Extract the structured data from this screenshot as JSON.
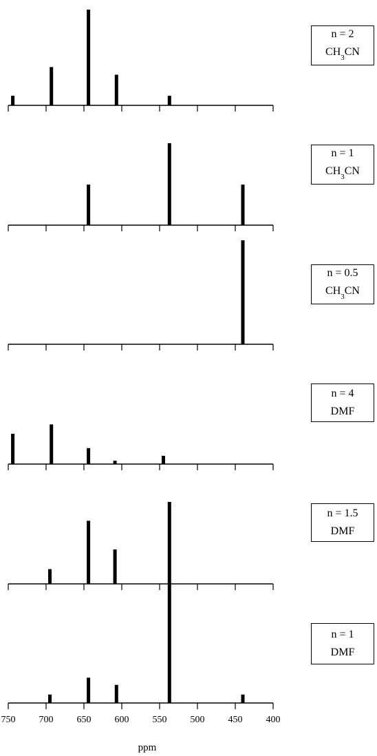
{
  "chart_data": {
    "type": "bar",
    "description": "Stacked spectra panels with shared ppm axis",
    "xlabel": "ppm",
    "xlim": [
      750,
      400
    ],
    "x_reversed": true,
    "xticks": [
      750,
      700,
      650,
      600,
      550,
      500,
      450,
      400
    ],
    "tick_labels": [
      "750",
      "700",
      "650",
      "600",
      "550",
      "500",
      "450",
      "400"
    ],
    "panels": [
      {
        "label_line1": "n = 2",
        "label_line2_main": "CH",
        "label_line2_sub": "3",
        "label_line2_end": "CN",
        "peaks": [
          {
            "ppm": 744,
            "height": 0.1
          },
          {
            "ppm": 693,
            "height": 0.4
          },
          {
            "ppm": 644,
            "height": 1.0
          },
          {
            "ppm": 607,
            "height": 0.32
          },
          {
            "ppm": 537,
            "height": 0.1
          }
        ]
      },
      {
        "label_line1": "n = 1",
        "label_line2_main": "CH",
        "label_line2_sub": "3",
        "label_line2_end": "CN",
        "peaks": [
          {
            "ppm": 644,
            "height": 0.46
          },
          {
            "ppm": 537,
            "height": 0.93
          },
          {
            "ppm": 440,
            "height": 0.46
          }
        ]
      },
      {
        "label_line1": "n = 0.5",
        "label_line2_main": "CH",
        "label_line2_sub": "3",
        "label_line2_end": "CN",
        "peaks": [
          {
            "ppm": 440,
            "height": 1.0
          }
        ]
      },
      {
        "label_line1": "n = 4",
        "label_line2_main": "DMF",
        "label_line2_sub": "",
        "label_line2_end": "",
        "peaks": [
          {
            "ppm": 744,
            "height": 0.55
          },
          {
            "ppm": 693,
            "height": 0.72
          },
          {
            "ppm": 644,
            "height": 0.29
          },
          {
            "ppm": 609,
            "height": 0.06
          },
          {
            "ppm": 545,
            "height": 0.15
          }
        ]
      },
      {
        "label_line1": "n = 1.5",
        "label_line2_main": "DMF",
        "label_line2_sub": "",
        "label_line2_end": "",
        "peaks": [
          {
            "ppm": 695,
            "height": 0.18
          },
          {
            "ppm": 644,
            "height": 0.77
          },
          {
            "ppm": 609,
            "height": 0.42
          },
          {
            "ppm": 537,
            "height": 1.0
          }
        ]
      },
      {
        "label_line1": "n = 1",
        "label_line2_main": "DMF",
        "label_line2_sub": "",
        "label_line2_end": "",
        "peaks": [
          {
            "ppm": 695,
            "height": 0.07
          },
          {
            "ppm": 644,
            "height": 0.21
          },
          {
            "ppm": 607,
            "height": 0.15
          },
          {
            "ppm": 537,
            "height": 1.0
          },
          {
            "ppm": 440,
            "height": 0.07
          }
        ]
      }
    ]
  }
}
